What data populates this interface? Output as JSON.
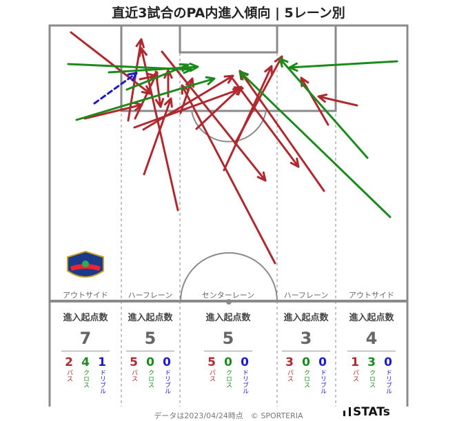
{
  "title": "直近3試合のPA内進入傾向 | 5レーン別",
  "lanes": [
    {
      "name": "アウトサイド",
      "header": "進入起点数",
      "total": "7",
      "pass": "2",
      "cross": "4",
      "dribble": "1"
    },
    {
      "name": "ハーフレーン",
      "header": "進入起点数",
      "total": "5",
      "pass": "5",
      "cross": "0",
      "dribble": "0"
    },
    {
      "name": "センターレーン",
      "header": "進入起点数",
      "total": "5",
      "pass": "5",
      "cross": "0",
      "dribble": "0"
    },
    {
      "name": "ハーフレーン",
      "header": "進入起点数",
      "total": "3",
      "pass": "3",
      "cross": "0",
      "dribble": "0"
    },
    {
      "name": "アウトサイド",
      "header": "進入起点数",
      "total": "4",
      "pass": "1",
      "cross": "3",
      "dribble": "0"
    }
  ],
  "labels": {
    "pass": "パス",
    "cross": "クロス",
    "dribble": "ドリブル"
  },
  "footer": "データは2023/04/24時点　© SPORTERIA",
  "logo_text": "STATs",
  "crest_text": "TOKUSHIMA VORTIS",
  "colors": {
    "pass": "#b0282d",
    "cross": "#1a8a1a",
    "dribble": "#1a1acc",
    "pitch_line": "#8a8a8a"
  },
  "chart_data": {
    "type": "arrow-map",
    "categories": [
      "アウトサイド",
      "ハーフレーン",
      "センターレーン",
      "ハーフレーン",
      "アウトサイド"
    ],
    "series": [
      {
        "name": "パス",
        "values": [
          2,
          5,
          5,
          3,
          1
        ]
      },
      {
        "name": "クロス",
        "values": [
          4,
          0,
          0,
          0,
          3
        ]
      },
      {
        "name": "ドリブル",
        "values": [
          1,
          0,
          0,
          0,
          0
        ]
      }
    ]
  }
}
